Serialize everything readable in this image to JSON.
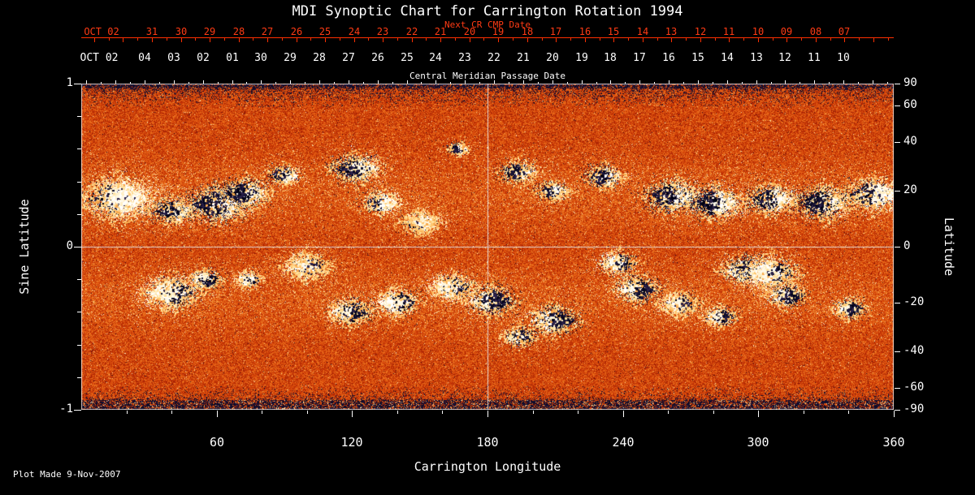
{
  "title": "MDI Synoptic Chart for Carrington Rotation 1994",
  "footer": {
    "plot_made": "Plot Made  9-Nov-2007"
  },
  "colors": {
    "background": "#000000",
    "axis_text": "#ffffff",
    "red_axis": "#ff2f00",
    "red_text": "#ff3b14",
    "crosshair": "#e8e8e8"
  },
  "chart_data": {
    "type": "heatmap",
    "title": "MDI Synoptic Chart for Carrington Rotation 1994",
    "xlabel": "Carrington Longitude",
    "ylabel_left": "Sine Latitude",
    "ylabel_right": "Latitude",
    "x_range": [
      0,
      360
    ],
    "sine_lat_range": [
      -1,
      1
    ],
    "x_ticks": [
      60,
      120,
      180,
      240,
      300,
      360
    ],
    "x_minor_step": 20,
    "left_ticks": [
      "1",
      "0",
      "-1"
    ],
    "left_tick_values": [
      1,
      0,
      -1
    ],
    "right_ticks": [
      90,
      60,
      40,
      20,
      0,
      -20,
      -40,
      -60,
      -90
    ],
    "crosshair": {
      "longitude": 180,
      "sine_latitude": 0
    },
    "top_axis_red": {
      "label": "Next CR CMP Date",
      "month": "OCT 02",
      "ticks": [
        "31",
        "30",
        "29",
        "28",
        "27",
        "26",
        "25",
        "24",
        "23",
        "22",
        "21",
        "20",
        "19",
        "18",
        "17",
        "16",
        "15",
        "14",
        "13",
        "12",
        "11",
        "10",
        "09",
        "08",
        "07"
      ]
    },
    "top_axis_white": {
      "label": "Central Meridian Passage Date",
      "month": "OCT 02",
      "ticks": [
        "04",
        "03",
        "02",
        "01",
        "30",
        "29",
        "28",
        "27",
        "26",
        "25",
        "24",
        "23",
        "22",
        "21",
        "20",
        "19",
        "18",
        "17",
        "16",
        "15",
        "14",
        "13",
        "12",
        "11",
        "10"
      ]
    },
    "palette": [
      "#050519",
      "#19143c",
      "#5a0f0a",
      "#a01e05",
      "#c83705",
      "#e15510",
      "#ee7b23",
      "#f8b45a",
      "#fff0c8"
    ],
    "active_regions": [
      {
        "lon": 16,
        "sine_lat": 0.3,
        "radius": 13,
        "dark": 0.15,
        "bright": 0.95
      },
      {
        "lon": 41,
        "sine_lat": 0.22,
        "radius": 8,
        "dark": 0.55,
        "bright": 0.5
      },
      {
        "lon": 61,
        "sine_lat": 0.26,
        "radius": 11,
        "dark": 0.9,
        "bright": 0.5
      },
      {
        "lon": 73,
        "sine_lat": 0.33,
        "radius": 9,
        "dark": 0.9,
        "bright": 0.35
      },
      {
        "lon": 90,
        "sine_lat": 0.44,
        "radius": 6,
        "dark": 0.6,
        "bright": 0.4
      },
      {
        "lon": 122,
        "sine_lat": 0.48,
        "radius": 9,
        "dark": 0.7,
        "bright": 0.5
      },
      {
        "lon": 133,
        "sine_lat": 0.27,
        "radius": 7,
        "dark": 0.3,
        "bright": 0.7
      },
      {
        "lon": 167,
        "sine_lat": 0.6,
        "radius": 4,
        "dark": 0.6,
        "bright": 0.2
      },
      {
        "lon": 194,
        "sine_lat": 0.46,
        "radius": 7,
        "dark": 0.5,
        "bright": 0.25
      },
      {
        "lon": 209,
        "sine_lat": 0.34,
        "radius": 6,
        "dark": 0.5,
        "bright": 0.3
      },
      {
        "lon": 232,
        "sine_lat": 0.43,
        "radius": 7,
        "dark": 0.7,
        "bright": 0.3
      },
      {
        "lon": 262,
        "sine_lat": 0.31,
        "radius": 10,
        "dark": 0.85,
        "bright": 0.5
      },
      {
        "lon": 281,
        "sine_lat": 0.27,
        "radius": 10,
        "dark": 0.8,
        "bright": 0.6
      },
      {
        "lon": 306,
        "sine_lat": 0.29,
        "radius": 9,
        "dark": 0.6,
        "bright": 0.7
      },
      {
        "lon": 329,
        "sine_lat": 0.27,
        "radius": 10,
        "dark": 0.9,
        "bright": 0.4
      },
      {
        "lon": 351,
        "sine_lat": 0.32,
        "radius": 10,
        "dark": 0.5,
        "bright": 0.9
      },
      {
        "lon": 40,
        "sine_lat": -0.28,
        "radius": 10,
        "dark": 0.3,
        "bright": 0.9
      },
      {
        "lon": 55,
        "sine_lat": -0.2,
        "radius": 6,
        "dark": 0.55,
        "bright": 0.4
      },
      {
        "lon": 74,
        "sine_lat": -0.2,
        "radius": 5,
        "dark": 0.2,
        "bright": 0.6
      },
      {
        "lon": 100,
        "sine_lat": -0.12,
        "radius": 8,
        "dark": 0.1,
        "bright": 0.3
      },
      {
        "lon": 119,
        "sine_lat": -0.4,
        "radius": 8,
        "dark": 0.5,
        "bright": 0.35
      },
      {
        "lon": 140,
        "sine_lat": -0.34,
        "radius": 8,
        "dark": 0.4,
        "bright": 0.8
      },
      {
        "lon": 150,
        "sine_lat": 0.15,
        "radius": 7,
        "dark": 0.1,
        "bright": 0.3
      },
      {
        "lon": 164,
        "sine_lat": -0.25,
        "radius": 8,
        "dark": 0.3,
        "bright": 0.9
      },
      {
        "lon": 181,
        "sine_lat": -0.33,
        "radius": 9,
        "dark": 0.85,
        "bright": 0.4
      },
      {
        "lon": 194,
        "sine_lat": -0.55,
        "radius": 6,
        "dark": 0.5,
        "bright": 0.2
      },
      {
        "lon": 209,
        "sine_lat": -0.45,
        "radius": 9,
        "dark": 0.8,
        "bright": 0.3
      },
      {
        "lon": 238,
        "sine_lat": -0.1,
        "radius": 7,
        "dark": 0.4,
        "bright": 0.7
      },
      {
        "lon": 246,
        "sine_lat": -0.26,
        "radius": 8,
        "dark": 0.7,
        "bright": 0.35
      },
      {
        "lon": 265,
        "sine_lat": -0.35,
        "radius": 7,
        "dark": 0.2,
        "bright": 0.3
      },
      {
        "lon": 283,
        "sine_lat": -0.43,
        "radius": 6,
        "dark": 0.5,
        "bright": 0.4
      },
      {
        "lon": 293,
        "sine_lat": -0.14,
        "radius": 8,
        "dark": 0.9,
        "bright": 0.4
      },
      {
        "lon": 306,
        "sine_lat": -0.16,
        "radius": 10,
        "dark": 0.3,
        "bright": 0.95
      },
      {
        "lon": 312,
        "sine_lat": -0.3,
        "radius": 7,
        "dark": 0.7,
        "bright": 0.3
      },
      {
        "lon": 340,
        "sine_lat": -0.38,
        "radius": 6,
        "dark": 0.5,
        "bright": 0.25
      }
    ]
  }
}
